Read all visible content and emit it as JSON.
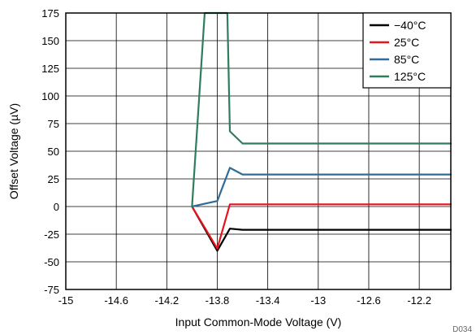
{
  "chart_data": {
    "type": "line",
    "xlabel": "Input Common-Mode Voltage (V)",
    "ylabel": "Offset Voltage (µV)",
    "xlim": [
      -15,
      -11.95
    ],
    "ylim": [
      -75,
      175
    ],
    "xticks": [
      "-15",
      "-14.6",
      "-14.2",
      "-13.8",
      "-13.4",
      "-13",
      "-12.6",
      "-12.2"
    ],
    "yticks": [
      "175",
      "150",
      "125",
      "100",
      "75",
      "50",
      "25",
      "0",
      "-25",
      "-50",
      "-75"
    ],
    "grid": true,
    "legend_position": "top-right",
    "series": [
      {
        "name": "−40°C",
        "color": "#000000",
        "points": [
          [
            -14.0,
            0
          ],
          [
            -13.8,
            -40
          ],
          [
            -13.7,
            -20
          ],
          [
            -13.6,
            -21
          ],
          [
            -11.95,
            -21
          ]
        ]
      },
      {
        "name": "25°C",
        "color": "#e8131c",
        "points": [
          [
            -14.0,
            0
          ],
          [
            -13.8,
            -38
          ],
          [
            -13.7,
            2
          ],
          [
            -13.6,
            2
          ],
          [
            -11.95,
            2
          ]
        ]
      },
      {
        "name": "85°C",
        "color": "#2f6c96",
        "points": [
          [
            -14.0,
            0
          ],
          [
            -13.8,
            5
          ],
          [
            -13.7,
            35
          ],
          [
            -13.6,
            29
          ],
          [
            -11.95,
            29
          ]
        ]
      },
      {
        "name": "125°C",
        "color": "#2e7d5c",
        "points": [
          [
            -14.0,
            0
          ],
          [
            -13.9,
            175
          ],
          [
            -13.72,
            175
          ],
          [
            -13.7,
            68
          ],
          [
            -13.6,
            57
          ],
          [
            -11.95,
            57
          ]
        ]
      }
    ],
    "footnote": "D034"
  }
}
